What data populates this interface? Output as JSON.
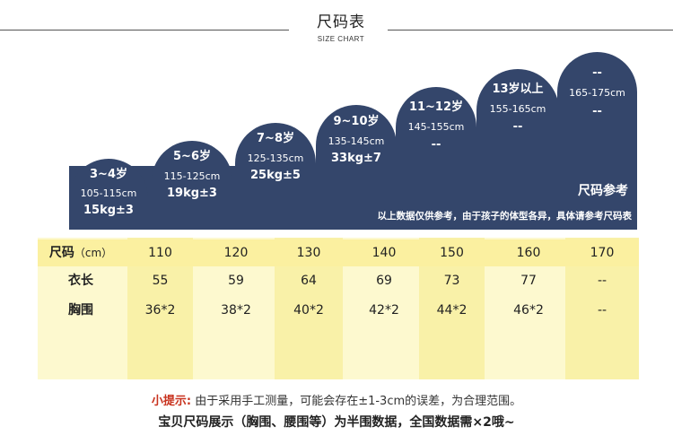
{
  "header": {
    "title": "尺码表",
    "subtitle": "SIZE CHART"
  },
  "arches": [
    {
      "name": "3~4岁",
      "cm": "105-115cm",
      "kg": "15kg±3"
    },
    {
      "name": "5~6岁",
      "cm": "115-125cm",
      "kg": "19kg±3"
    },
    {
      "name": "7~8岁",
      "cm": "125-135cm",
      "kg": "25kg±5"
    },
    {
      "name": "9~10岁",
      "cm": "135-145cm",
      "kg": "33kg±7"
    },
    {
      "name": "11~12岁",
      "cm": "145-155cm",
      "kg": "--"
    },
    {
      "name": "13岁以上",
      "cm": "155-165cm",
      "kg": "--"
    },
    {
      "name": "--",
      "cm": "165-175cm",
      "kg": "--"
    }
  ],
  "note": {
    "title": "尺码参考",
    "text": "以上数据仅供参考，由于孩子的体型各异，具体请参考尺码表"
  },
  "table": {
    "rows": [
      {
        "label": "尺码",
        "unit": "（cm）",
        "values": [
          "110",
          "120",
          "130",
          "140",
          "150",
          "160",
          "170"
        ]
      },
      {
        "label": "衣长",
        "unit": "",
        "values": [
          "55",
          "59",
          "64",
          "69",
          "73",
          "77",
          "--"
        ]
      },
      {
        "label": "胸围",
        "unit": "",
        "values": [
          "36*2",
          "38*2",
          "40*2",
          "42*2",
          "44*2",
          "46*2",
          "--"
        ]
      }
    ]
  },
  "footer": {
    "tip_label": "小提示:",
    "tip_text": " 由于采用手工测量，可能会存在±1-3cm的误差，为合理范围。",
    "bottom_text": "宝贝尺码展示（胸围、腰围等）为半围数据，全国数据需×2哦~"
  },
  "colors": {
    "navy": "#34466b",
    "table_bg": "#fdf9cf",
    "table_highlight": "#f9f1a8",
    "tip_red": "#c8321e"
  }
}
